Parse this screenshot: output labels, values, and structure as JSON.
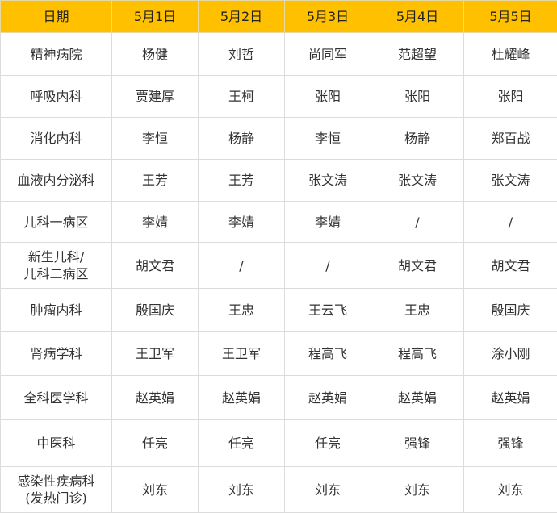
{
  "header": [
    "日期",
    "5月1日",
    "5月2日",
    "5月3日",
    "5月4日",
    "5月5日"
  ],
  "header_color": "#FFC000",
  "rows": [
    {
      "dept": [
        "精神病院"
      ],
      "cells": [
        "杨健",
        "刘哲",
        "尚同军",
        "范超望",
        "杜耀峰"
      ]
    },
    {
      "dept": [
        "呼吸内科"
      ],
      "cells": [
        "贾建厚",
        "王柯",
        "张阳",
        "张阳",
        "张阳"
      ]
    },
    {
      "dept": [
        "消化内科"
      ],
      "cells": [
        "李恒",
        "杨静",
        "李恒",
        "杨静",
        "郑百战"
      ]
    },
    {
      "dept": [
        "血液内分泌科"
      ],
      "cells": [
        "王芳",
        "王芳",
        "张文涛",
        "张文涛",
        "张文涛"
      ]
    },
    {
      "dept": [
        "儿科一病区"
      ],
      "cells": [
        "李婧",
        "李婧",
        "李婧",
        "/",
        "/"
      ]
    },
    {
      "dept": [
        "新生儿科/",
        "儿科二病区"
      ],
      "cells": [
        "胡文君",
        "/",
        "/",
        "胡文君",
        "胡文君"
      ]
    },
    {
      "dept": [
        "肿瘤内科"
      ],
      "cells": [
        "殷国庆",
        "王忠",
        "王云飞",
        "王忠",
        "殷国庆"
      ]
    },
    {
      "dept": [
        "肾病学科"
      ],
      "cells": [
        "王卫军",
        "王卫军",
        "程高飞",
        "程高飞",
        "涂小刚"
      ]
    },
    {
      "dept": [
        "全科医学科"
      ],
      "cells": [
        "赵英娟",
        "赵英娟",
        "赵英娟",
        "赵英娟",
        "赵英娟"
      ]
    },
    {
      "dept": [
        "中医科"
      ],
      "cells": [
        "任亮",
        "任亮",
        "任亮",
        "强锋",
        "强锋"
      ]
    },
    {
      "dept": [
        "感染性疾病科",
        "(发热门诊)"
      ],
      "cells": [
        "刘东",
        "刘东",
        "刘东",
        "刘东",
        "刘东"
      ]
    }
  ]
}
